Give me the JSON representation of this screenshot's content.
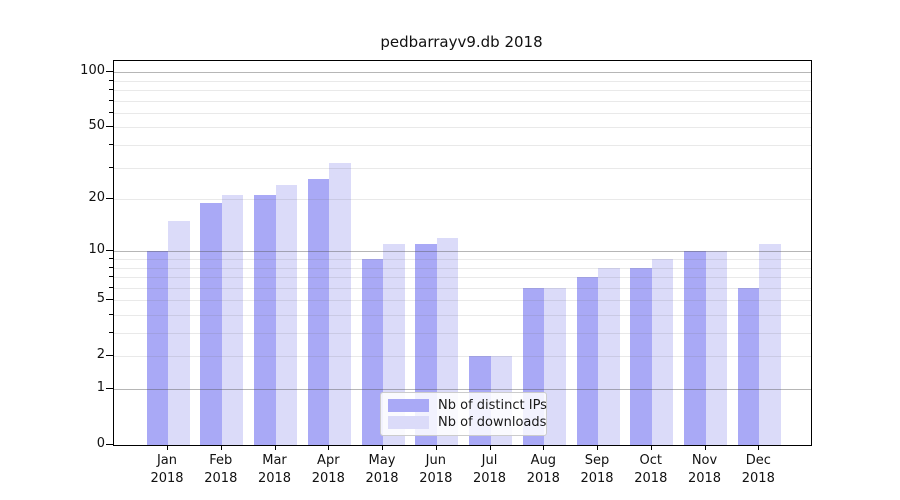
{
  "title": "pedbarrayv9.db 2018",
  "chart_data": {
    "type": "bar",
    "title": "pedbarrayv9.db 2018",
    "categories": [
      "Jan 2018",
      "Feb 2018",
      "Mar 2018",
      "Apr 2018",
      "May 2018",
      "Jun 2018",
      "Jul 2018",
      "Aug 2018",
      "Sep 2018",
      "Oct 2018",
      "Nov 2018",
      "Dec 2018"
    ],
    "series": [
      {
        "name": "Nb of distinct IPs",
        "key": "distinct-ips",
        "color": "#a9a9f6",
        "values": [
          10,
          19,
          21,
          26,
          9,
          11,
          2,
          6,
          7,
          8,
          10,
          6
        ]
      },
      {
        "name": "Nb of downloads",
        "key": "downloads",
        "color": "#dbdbf9",
        "values": [
          15,
          21,
          24,
          32,
          11,
          12,
          2,
          6,
          8,
          9,
          10,
          11
        ]
      }
    ],
    "xlabel": "",
    "ylabel": "",
    "yscale": "log1p",
    "ylim": [
      0,
      115
    ],
    "ytick_values": [
      0,
      1,
      2,
      5,
      10,
      20,
      50,
      100
    ],
    "ytick_labels": [
      "0",
      "1",
      "2",
      "5",
      "10",
      "20",
      "50",
      "100"
    ],
    "grid": "horizontal",
    "grid_major_values": [
      1,
      10,
      100
    ],
    "grid_minor_values": [
      2,
      3,
      4,
      5,
      6,
      7,
      8,
      9,
      20,
      30,
      40,
      50,
      60,
      70,
      80,
      90
    ],
    "legend_position": "lower center"
  },
  "colors": {
    "bar_dark": "#a9a9f6",
    "bar_light": "#dbdbf9",
    "spine": "#000000",
    "legend_border": "#cccccc"
  }
}
